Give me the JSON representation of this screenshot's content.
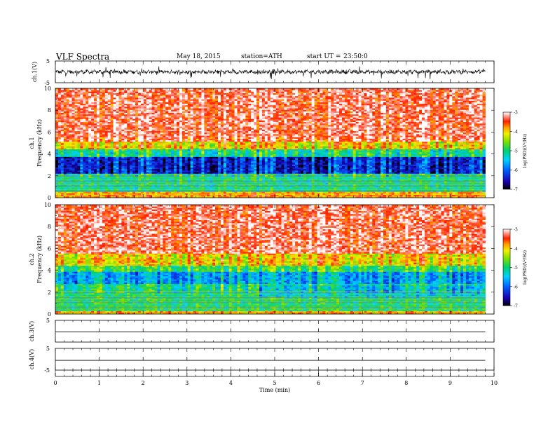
{
  "header": {
    "title": "VLF Spectra",
    "date": "May 18, 2015",
    "station": "station=ATH",
    "start_label": "start UT =",
    "start_time": "23:50:0"
  },
  "chart_data": [
    {
      "type": "line",
      "name": "ch1-waveform",
      "ylabel": "ch.1(V)",
      "ylim": [
        -5,
        5
      ],
      "yticks": [
        "5",
        "-5"
      ],
      "x_range_min": [
        0,
        9.8
      ],
      "description_values": "broadband noisy waveform, amplitude roughly ±1 V around 0 with spikes"
    },
    {
      "type": "heatmap",
      "name": "ch1-spectrogram",
      "ylabel_channel": "ch.1",
      "ylabel": "Frequency (kHz)",
      "ylim": [
        0,
        10
      ],
      "yticks": [
        "0",
        "2",
        "4",
        "6",
        "8",
        "10"
      ],
      "x_range_min": [
        0,
        9.8
      ],
      "colorbar": {
        "label": "log(PSD)(V²/Hz)",
        "range": [
          -7,
          -3
        ],
        "ticks": [
          "-3",
          "-4",
          "-5",
          "-6",
          "-7"
        ]
      },
      "bands_khz_logpsd": [
        {
          "f": [
            5.2,
            10
          ],
          "level": -3.3
        },
        {
          "f": [
            4.4,
            5.2
          ],
          "level": -4.0
        },
        {
          "f": [
            3.8,
            4.4
          ],
          "level": -5.0
        },
        {
          "f": [
            2.2,
            3.8
          ],
          "level": -6.3
        },
        {
          "f": [
            0.5,
            2.2
          ],
          "level": -5.1
        },
        {
          "f": [
            0,
            0.5
          ],
          "level": -3.8
        }
      ]
    },
    {
      "type": "heatmap",
      "name": "ch2-spectrogram",
      "ylabel_channel": "ch.2",
      "ylabel": "Frequency (kHz)",
      "ylim": [
        0,
        10
      ],
      "yticks": [
        "0",
        "2",
        "4",
        "6",
        "8",
        "10"
      ],
      "x_range_min": [
        0,
        9.8
      ],
      "colorbar": {
        "label": "log(PSD)(V²/Hz)",
        "range": [
          -7,
          -3
        ],
        "ticks": [
          "-3",
          "-4",
          "-5",
          "-6",
          "-7"
        ]
      },
      "bands_khz_logpsd": [
        {
          "f": [
            5.5,
            10
          ],
          "level": -3.3
        },
        {
          "f": [
            4.5,
            5.5
          ],
          "level": -4.0
        },
        {
          "f": [
            3.9,
            4.5
          ],
          "level": -4.8
        },
        {
          "f": [
            2.8,
            3.9
          ],
          "level": -5.6
        },
        {
          "f": [
            0.3,
            2.8
          ],
          "level": -5.0
        },
        {
          "f": [
            0,
            0.3
          ],
          "level": -3.9
        }
      ],
      "step_change_min": 4.6
    },
    {
      "type": "line",
      "name": "ch3-waveform",
      "ylabel": "ch.3(V)",
      "ylim": [
        -5,
        5
      ],
      "yticks": [
        "5"
      ],
      "x_range_min": [
        0,
        9.8
      ],
      "level": -0.3
    },
    {
      "type": "line",
      "name": "ch4-waveform",
      "ylabel": "ch.4(V)",
      "ylim": [
        -5,
        5
      ],
      "yticks": [
        "5",
        "-5"
      ],
      "x_range_min": [
        0,
        9.8
      ],
      "level": -0.5
    }
  ],
  "x_axis": {
    "label": "Time (min)",
    "range": [
      0,
      10
    ],
    "ticks": [
      "0",
      "1",
      "2",
      "3",
      "4",
      "5",
      "6",
      "7",
      "8",
      "9",
      "10"
    ]
  }
}
